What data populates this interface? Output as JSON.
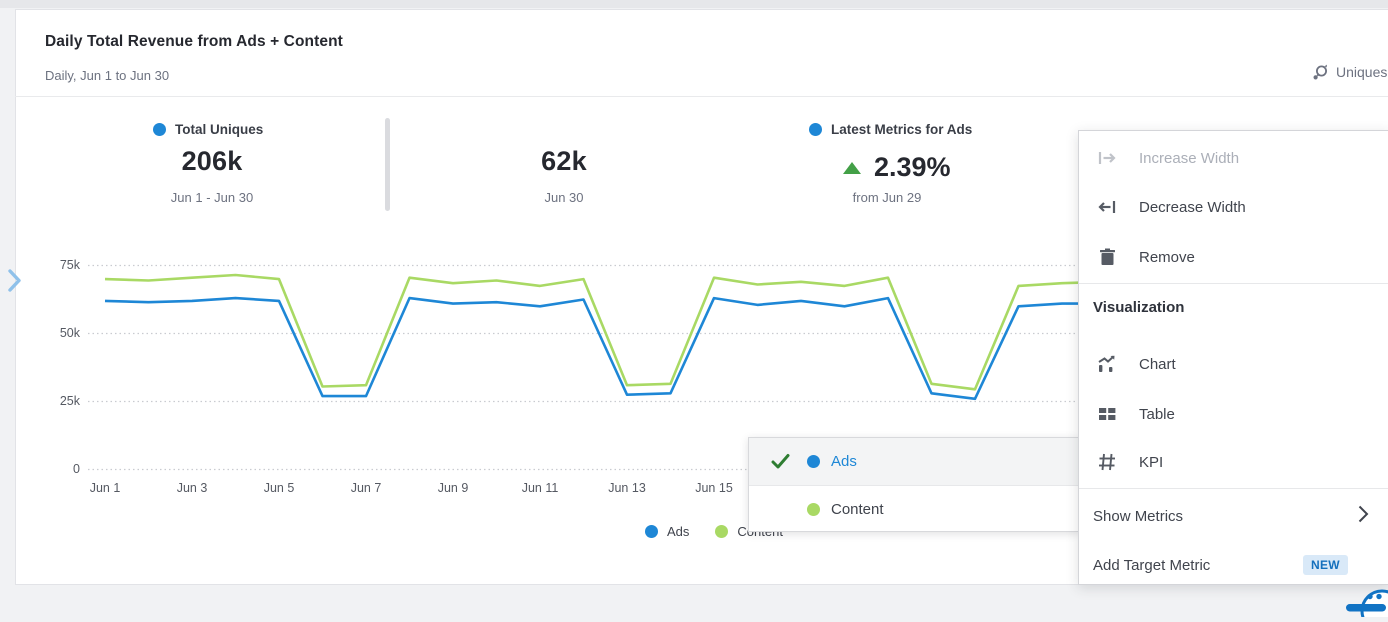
{
  "header": {
    "title": "Daily Total Revenue from Ads + Content",
    "subtitle": "Daily, Jun 1 to Jun 30",
    "measure_label": "Uniques"
  },
  "kpis": {
    "total_uniques": {
      "label": "Total Uniques",
      "value": "206k",
      "period": "Jun 1 - Jun 30"
    },
    "latest_value": {
      "value": "62k",
      "period": "Jun 30"
    },
    "latest_metrics": {
      "label": "Latest Metrics for Ads",
      "value": "2.39%",
      "period": "from Jun 29",
      "direction": "up"
    }
  },
  "legend": {
    "ads": "Ads",
    "content": "Content"
  },
  "series_dropdown": {
    "ads": {
      "label": "Ads",
      "checked": true
    },
    "content": {
      "label": "Content",
      "checked": false
    }
  },
  "context_menu": {
    "increase_width": "Increase Width",
    "decrease_width": "Decrease Width",
    "remove": "Remove",
    "section_visualization": "Visualization",
    "chart": "Chart",
    "table": "Table",
    "kpi": "KPI",
    "show_metrics": "Show Metrics",
    "add_target_metric": "Add Target Metric",
    "new_badge": "NEW"
  },
  "colors": {
    "ads_blue": "#1e87d6",
    "content_green": "#a9d964",
    "delta_up_green": "#43a047",
    "checkmark_green": "#2e7d32",
    "new_badge_bg": "#d9e9f8",
    "new_badge_text": "#1470bd",
    "disabled_text": "#abafb8"
  },
  "chart_data": {
    "type": "line",
    "title": "Daily Total Revenue from Ads + Content",
    "x": [
      "Jun 1",
      "Jun 2",
      "Jun 3",
      "Jun 4",
      "Jun 5",
      "Jun 6",
      "Jun 7",
      "Jun 8",
      "Jun 9",
      "Jun 10",
      "Jun 11",
      "Jun 12",
      "Jun 13",
      "Jun 14",
      "Jun 15",
      "Jun 16",
      "Jun 17",
      "Jun 18",
      "Jun 19",
      "Jun 20",
      "Jun 21",
      "Jun 22",
      "Jun 23",
      "Jun 24"
    ],
    "series": [
      {
        "name": "Ads",
        "color": "#1e87d6",
        "values": [
          62000,
          61500,
          62000,
          63000,
          62000,
          27000,
          27000,
          63000,
          61000,
          61500,
          60000,
          62500,
          27500,
          28000,
          63000,
          60500,
          62000,
          60000,
          63000,
          28000,
          26000,
          60000,
          61000,
          61000
        ]
      },
      {
        "name": "Content",
        "color": "#a9d964",
        "values": [
          70000,
          69500,
          70500,
          71500,
          70000,
          30500,
          31000,
          70500,
          68500,
          69500,
          67500,
          70000,
          31000,
          31500,
          70500,
          68000,
          69000,
          67500,
          70500,
          31500,
          29500,
          67500,
          68500,
          69000
        ]
      }
    ],
    "ylim": [
      0,
      75000
    ],
    "ytick_labels": [
      "0",
      "25k",
      "50k",
      "75k"
    ],
    "ytick_values": [
      0,
      25000,
      50000,
      75000
    ],
    "xtick_labels": [
      "Jun 1",
      "Jun 3",
      "Jun 5",
      "Jun 7",
      "Jun 9",
      "Jun 11",
      "Jun 13",
      "Jun 15"
    ],
    "grid": "dotted-horizontal",
    "legend_position": "bottom"
  }
}
